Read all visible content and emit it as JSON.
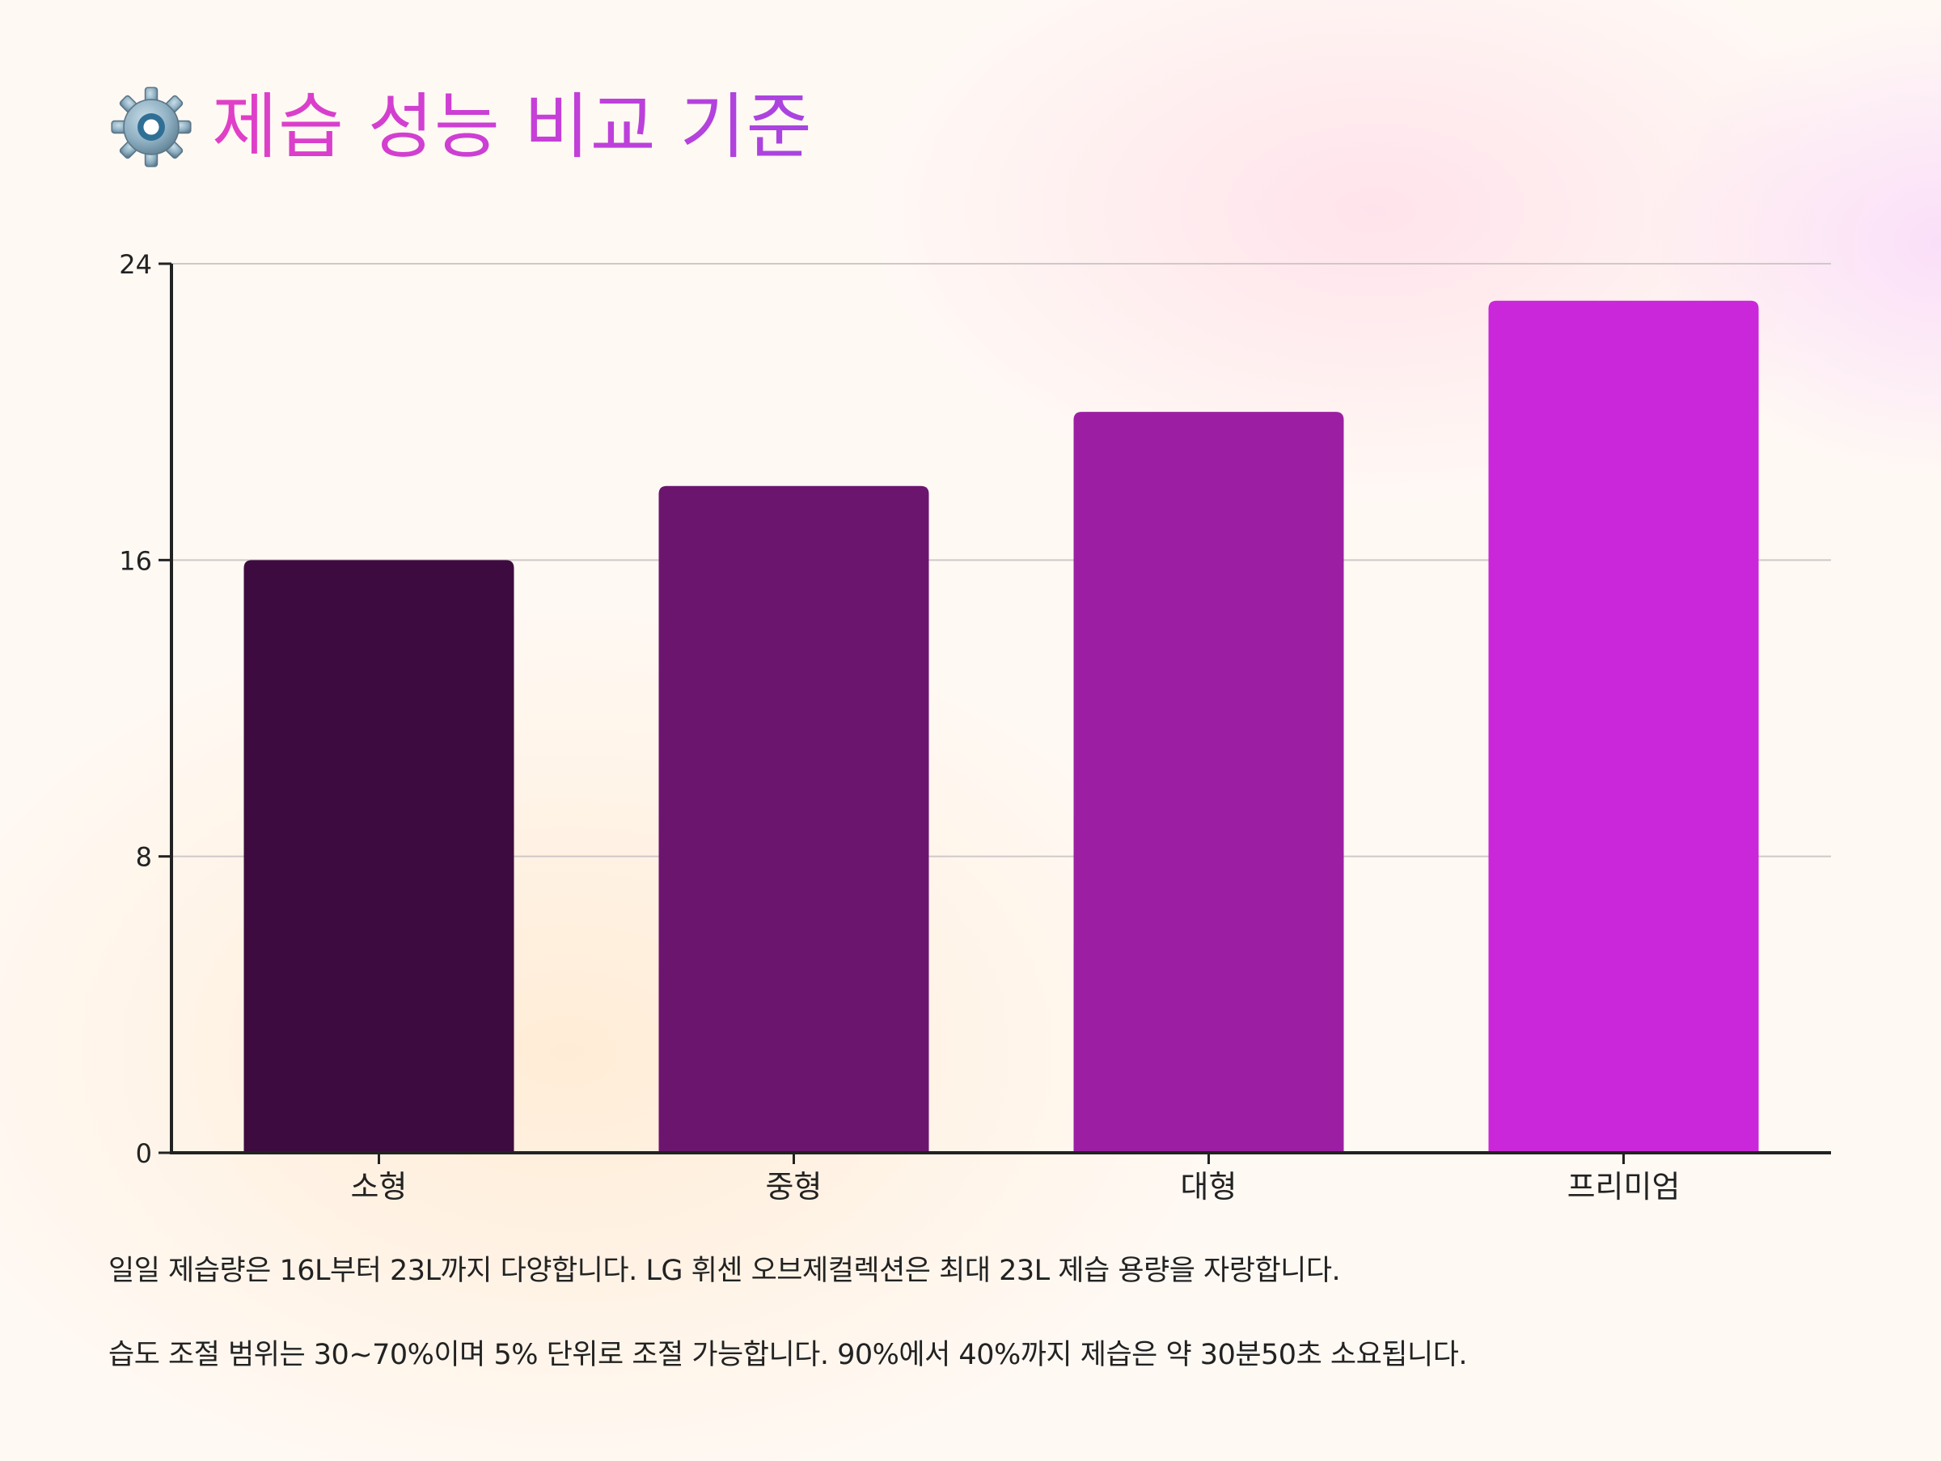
{
  "header": {
    "title": "제습 성능 비교 기준",
    "icon": "gear-icon"
  },
  "chart_data": {
    "type": "bar",
    "categories": [
      "소형",
      "중형",
      "대형",
      "프리미엄"
    ],
    "values": [
      16,
      18,
      20,
      23
    ],
    "colors": [
      "#3d0b3f",
      "#6c156f",
      "#9c1fa3",
      "#c927d9"
    ],
    "title": "",
    "xlabel": "",
    "ylabel": "",
    "ylim": [
      0,
      24
    ],
    "yticks": [
      "0",
      "8",
      "16",
      "24"
    ],
    "ytick_values": [
      0,
      8,
      16,
      24
    ],
    "grid": true,
    "legend": "none"
  },
  "notes": [
    "일일 제습량은 16L부터 23L까지 다양합니다. LG 휘센 오브제컬렉션은 최대 23L 제습 용량을 자랑합니다.",
    "습도 조절 범위는 30~70%이며 5% 단위로 조절 가능합니다. 90%에서 40%까지 제습은 약 30분50초 소요됩니다."
  ]
}
